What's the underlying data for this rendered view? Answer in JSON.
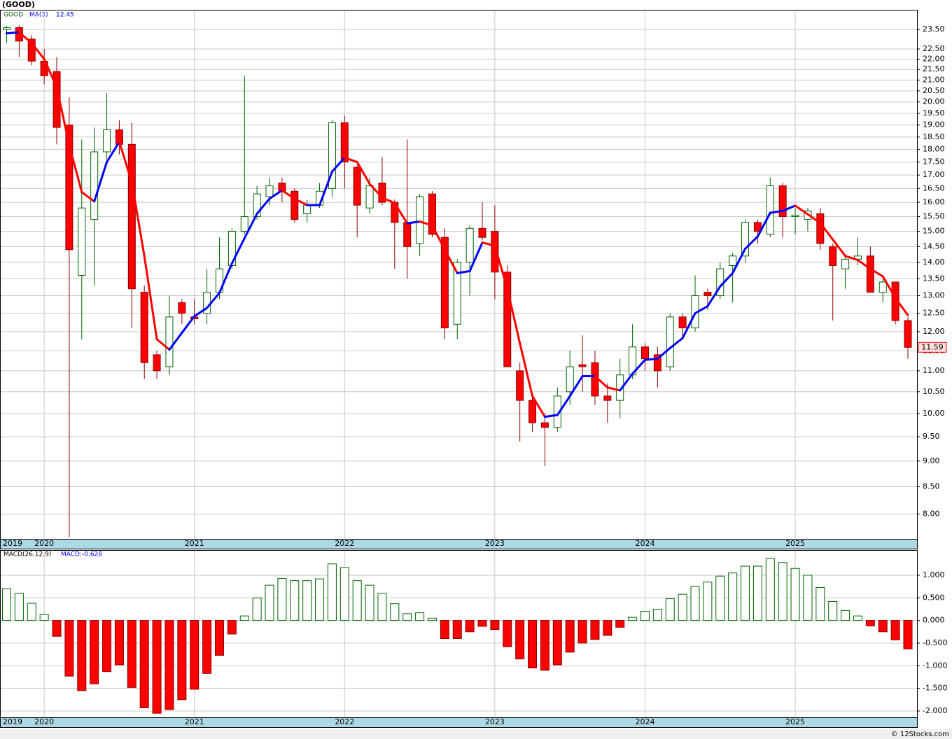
{
  "chart_data": [
    {
      "type": "candlestick",
      "title": "(GOOD)",
      "symbol": "GOOD",
      "categories": [
        "2019",
        null,
        null,
        "2020",
        null,
        null,
        null,
        null,
        null,
        null,
        null,
        null,
        null,
        null,
        null,
        "2021",
        null,
        null,
        null,
        null,
        null,
        null,
        null,
        null,
        null,
        null,
        null,
        "2022",
        null,
        null,
        null,
        null,
        null,
        null,
        null,
        null,
        null,
        null,
        null,
        "2023",
        null,
        null,
        null,
        null,
        null,
        null,
        null,
        null,
        null,
        null,
        null,
        "2024",
        null,
        null,
        null,
        null,
        null,
        null,
        null,
        null,
        null,
        null,
        null,
        "2025",
        null,
        null,
        null,
        null,
        null,
        null,
        null,
        null,
        null
      ],
      "open": [
        23.5,
        23.6,
        23.0,
        21.9,
        21.4,
        19.0,
        13.6,
        15.4,
        17.9,
        18.8,
        18.2,
        13.1,
        11.4,
        11.1,
        12.8,
        12.4,
        12.5,
        13.1,
        13.9,
        15.0,
        15.5,
        16.2,
        16.7,
        16.4,
        15.6,
        15.9,
        16.5,
        19.1,
        17.3,
        15.8,
        16.7,
        16.0,
        15.3,
        14.6,
        16.3,
        14.8,
        12.2,
        14.0,
        15.1,
        15.0,
        13.7,
        11.0,
        10.3,
        9.8,
        9.7,
        10.5,
        11.15,
        11.2,
        10.4,
        10.3,
        10.9,
        11.6,
        11.4,
        11.1,
        12.4,
        12.1,
        13.1,
        13.0,
        13.9,
        14.2,
        15.3,
        14.9,
        16.6,
        15.5,
        15.4,
        15.6,
        14.5,
        13.8,
        14.1,
        14.2,
        13.1,
        13.4,
        12.3
      ],
      "high": [
        23.7,
        23.7,
        23.2,
        22.5,
        22.1,
        20.2,
        18.4,
        18.9,
        20.4,
        19.2,
        19.1,
        13.3,
        11.5,
        13.0,
        12.9,
        12.9,
        13.8,
        14.8,
        15.1,
        21.2,
        16.6,
        16.9,
        16.9,
        16.5,
        16.1,
        16.7,
        19.2,
        19.4,
        17.4,
        16.9,
        17.7,
        16.1,
        18.4,
        16.3,
        16.4,
        15.1,
        14.1,
        15.2,
        16.0,
        15.9,
        13.9,
        11.2,
        10.4,
        10.0,
        10.6,
        11.5,
        11.9,
        11.5,
        10.7,
        11.3,
        12.2,
        11.7,
        11.6,
        12.5,
        12.5,
        13.6,
        13.2,
        14.0,
        14.3,
        15.4,
        15.4,
        16.9,
        16.7,
        15.8,
        15.8,
        15.8,
        14.6,
        14.2,
        14.8,
        14.5,
        13.5,
        13.4,
        12.4
      ],
      "low": [
        22.8,
        22.1,
        21.7,
        20.8,
        18.2,
        7.6,
        11.8,
        13.3,
        17.6,
        17.8,
        12.1,
        10.8,
        10.8,
        10.9,
        12.2,
        12.2,
        12.2,
        12.9,
        13.8,
        14.9,
        15.4,
        15.9,
        16.0,
        15.3,
        15.3,
        15.8,
        16.2,
        16.5,
        14.8,
        15.6,
        15.9,
        13.8,
        13.5,
        14.2,
        14.8,
        11.8,
        11.8,
        13.0,
        14.7,
        12.9,
        11.1,
        9.4,
        9.6,
        8.9,
        9.6,
        10.2,
        10.5,
        10.2,
        9.8,
        9.9,
        10.8,
        11.0,
        10.6,
        11.0,
        11.8,
        12.0,
        12.6,
        12.9,
        12.8,
        14.0,
        14.6,
        14.8,
        14.8,
        14.9,
        15.0,
        14.4,
        12.3,
        13.2,
        13.9,
        13.1,
        12.8,
        12.2,
        11.3
      ],
      "close": [
        23.6,
        22.9,
        21.9,
        21.2,
        18.9,
        14.4,
        15.8,
        17.9,
        18.8,
        18.2,
        13.2,
        11.2,
        11.0,
        12.4,
        12.5,
        12.35,
        13.1,
        13.8,
        15.0,
        15.5,
        16.3,
        16.6,
        16.4,
        15.4,
        15.9,
        16.4,
        19.1,
        17.5,
        15.9,
        16.6,
        16.0,
        15.3,
        14.5,
        16.2,
        14.9,
        12.1,
        14.0,
        15.1,
        14.8,
        13.7,
        11.1,
        10.3,
        9.8,
        9.7,
        10.4,
        11.1,
        11.1,
        10.4,
        10.3,
        10.9,
        11.6,
        11.3,
        11.0,
        12.4,
        12.1,
        13.0,
        13.0,
        13.8,
        14.2,
        15.3,
        15.0,
        16.6,
        15.5,
        15.55,
        15.7,
        14.6,
        13.9,
        14.1,
        14.2,
        13.1,
        13.4,
        12.3,
        11.59
      ],
      "up_color": "#006400",
      "down_color": "#ff0000",
      "ma": {
        "name": "MA(3)",
        "up_color": "#0000ff",
        "down_color": "#ff0000",
        "values": [
          23.3,
          23.35,
          22.8,
          22.0,
          20.67,
          18.17,
          16.37,
          16.03,
          17.5,
          18.3,
          16.73,
          14.2,
          11.8,
          11.53,
          11.97,
          12.42,
          12.65,
          13.08,
          13.97,
          14.77,
          15.6,
          16.13,
          16.43,
          16.13,
          15.9,
          15.9,
          17.13,
          17.67,
          17.5,
          16.67,
          16.17,
          15.97,
          15.27,
          15.33,
          15.2,
          14.4,
          13.67,
          13.73,
          14.63,
          14.53,
          13.2,
          11.7,
          10.4,
          9.93,
          9.97,
          10.4,
          10.87,
          10.87,
          10.6,
          10.53,
          10.93,
          11.27,
          11.3,
          11.57,
          11.83,
          12.5,
          12.7,
          13.27,
          13.67,
          14.43,
          14.83,
          15.63,
          15.7,
          15.88,
          15.58,
          15.28,
          14.73,
          14.2,
          14.07,
          13.8,
          13.57,
          12.93,
          12.45
        ]
      },
      "ylim": [
        7.57,
        24.55
      ],
      "log_scale": true,
      "grid": true,
      "yticks": [
        {
          "value": 8,
          "label": "8.00"
        },
        {
          "value": 8.5,
          "label": "8.50"
        },
        {
          "value": 9,
          "label": "9.00"
        },
        {
          "value": 9.5,
          "label": "9.50"
        },
        {
          "value": 10,
          "label": "10.00"
        },
        {
          "value": 10.5,
          "label": "10.50"
        },
        {
          "value": 11,
          "label": "11.00"
        },
        {
          "value": 11.5,
          "label": "11.50"
        },
        {
          "value": 12,
          "label": "12.00"
        },
        {
          "value": 12.5,
          "label": "12.50"
        },
        {
          "value": 13,
          "label": "13.00"
        },
        {
          "value": 13.5,
          "label": "13.50"
        },
        {
          "value": 14,
          "label": "14.00"
        },
        {
          "value": 14.5,
          "label": "14.50"
        },
        {
          "value": 15,
          "label": "15.00"
        },
        {
          "value": 15.5,
          "label": "15.50"
        },
        {
          "value": 16,
          "label": "16.00"
        },
        {
          "value": 16.5,
          "label": "16.50"
        },
        {
          "value": 17,
          "label": "17.00"
        },
        {
          "value": 17.5,
          "label": "17.50"
        },
        {
          "value": 18,
          "label": "18.00"
        },
        {
          "value": 18.5,
          "label": "18.50"
        },
        {
          "value": 19,
          "label": "19.00"
        },
        {
          "value": 19.5,
          "label": "19.50"
        },
        {
          "value": 20,
          "label": "20.00"
        },
        {
          "value": 20.5,
          "label": "20.50"
        },
        {
          "value": 21,
          "label": "21.00"
        },
        {
          "value": 21.5,
          "label": "21.50"
        },
        {
          "value": 22,
          "label": "22.00"
        },
        {
          "value": 22.5,
          "label": "22.50"
        },
        {
          "value": 23.5,
          "label": "23.50"
        }
      ]
    },
    {
      "type": "bar",
      "name": "MACD(26,12,9)",
      "value_name": "MACD:",
      "categories": [
        "2019",
        null,
        null,
        "2020",
        null,
        null,
        null,
        null,
        null,
        null,
        null,
        null,
        null,
        null,
        null,
        "2021",
        null,
        null,
        null,
        null,
        null,
        null,
        null,
        null,
        null,
        null,
        null,
        "2022",
        null,
        null,
        null,
        null,
        null,
        null,
        null,
        null,
        null,
        null,
        null,
        "2023",
        null,
        null,
        null,
        null,
        null,
        null,
        null,
        null,
        null,
        null,
        null,
        "2024",
        null,
        null,
        null,
        null,
        null,
        null,
        null,
        null,
        null,
        null,
        null,
        "2025",
        null,
        null,
        null,
        null,
        null,
        null,
        null,
        null,
        null
      ],
      "values": [
        0.7,
        0.6,
        0.38,
        0.13,
        -0.35,
        -1.23,
        -1.55,
        -1.4,
        -1.13,
        -0.98,
        -1.48,
        -1.93,
        -2.05,
        -1.97,
        -1.75,
        -1.52,
        -1.17,
        -0.77,
        -0.3,
        0.1,
        0.5,
        0.78,
        0.93,
        0.88,
        0.88,
        0.92,
        1.25,
        1.17,
        0.88,
        0.78,
        0.6,
        0.37,
        0.15,
        0.17,
        0.05,
        -0.4,
        -0.4,
        -0.25,
        -0.13,
        -0.2,
        -0.58,
        -0.85,
        -1.05,
        -1.1,
        -0.98,
        -0.7,
        -0.5,
        -0.42,
        -0.33,
        -0.15,
        0.07,
        0.2,
        0.25,
        0.48,
        0.58,
        0.75,
        0.85,
        0.98,
        1.05,
        1.2,
        1.2,
        1.37,
        1.28,
        1.15,
        1.0,
        0.73,
        0.42,
        0.22,
        0.1,
        -0.12,
        -0.25,
        -0.43,
        -0.628
      ],
      "positive_color": "#006400",
      "negative_color": "#ff0000",
      "ylim": [
        -2.14,
        1.556
      ],
      "grid": true,
      "yticks": [
        {
          "value": 1,
          "label": "1.000"
        },
        {
          "value": 0.5,
          "label": "0.500"
        },
        {
          "value": 0,
          "label": "0.000"
        },
        {
          "value": -0.5,
          "label": "-0.500"
        },
        {
          "value": -1,
          "label": "-1.000"
        },
        {
          "value": -1.5,
          "label": "-1.500"
        },
        {
          "value": -2,
          "label": "-2.000"
        }
      ]
    }
  ],
  "footer": "© 12Stocks.com"
}
